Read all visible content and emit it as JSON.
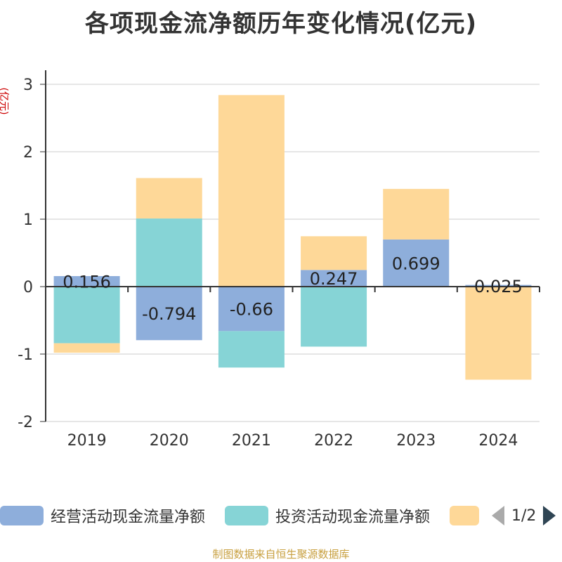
{
  "chart_data": {
    "type": "bar",
    "stacked": true,
    "title": "各项现金流净额历年变化情况(亿元)",
    "ylabel": "(亿元)",
    "xlabel": "",
    "categories": [
      "2019",
      "2020",
      "2021",
      "2022",
      "2023",
      "2024"
    ],
    "ylim": [
      -2,
      3
    ],
    "yticks": [
      3,
      2,
      1,
      0,
      -1,
      -2
    ],
    "series": [
      {
        "name": "经营活动现金流量净额",
        "color": "#8eaedb",
        "values": [
          0.156,
          -0.794,
          -0.66,
          0.247,
          0.699,
          0.025
        ],
        "labels": [
          "0.156",
          "-0.794",
          "-0.66",
          "0.247",
          "0.699",
          "0.025"
        ]
      },
      {
        "name": "投资活动现金流量净额",
        "color": "#86d4d6",
        "values": [
          -0.84,
          1.01,
          -0.54,
          -0.89,
          0.0,
          0.0
        ],
        "labels": []
      },
      {
        "name": "",
        "color": "#fed898",
        "values": [
          -0.14,
          0.6,
          2.84,
          0.5,
          0.75,
          -1.38
        ],
        "labels": []
      }
    ]
  },
  "legend": {
    "items": [
      {
        "label": "经营活动现金流量净额",
        "color": "#8eaedb"
      },
      {
        "label": "投资活动现金流量净额",
        "color": "#86d4d6"
      },
      {
        "label": "",
        "color": "#fed898"
      }
    ],
    "page": "1/2"
  },
  "source": "制图数据来自恒生聚源数据库"
}
